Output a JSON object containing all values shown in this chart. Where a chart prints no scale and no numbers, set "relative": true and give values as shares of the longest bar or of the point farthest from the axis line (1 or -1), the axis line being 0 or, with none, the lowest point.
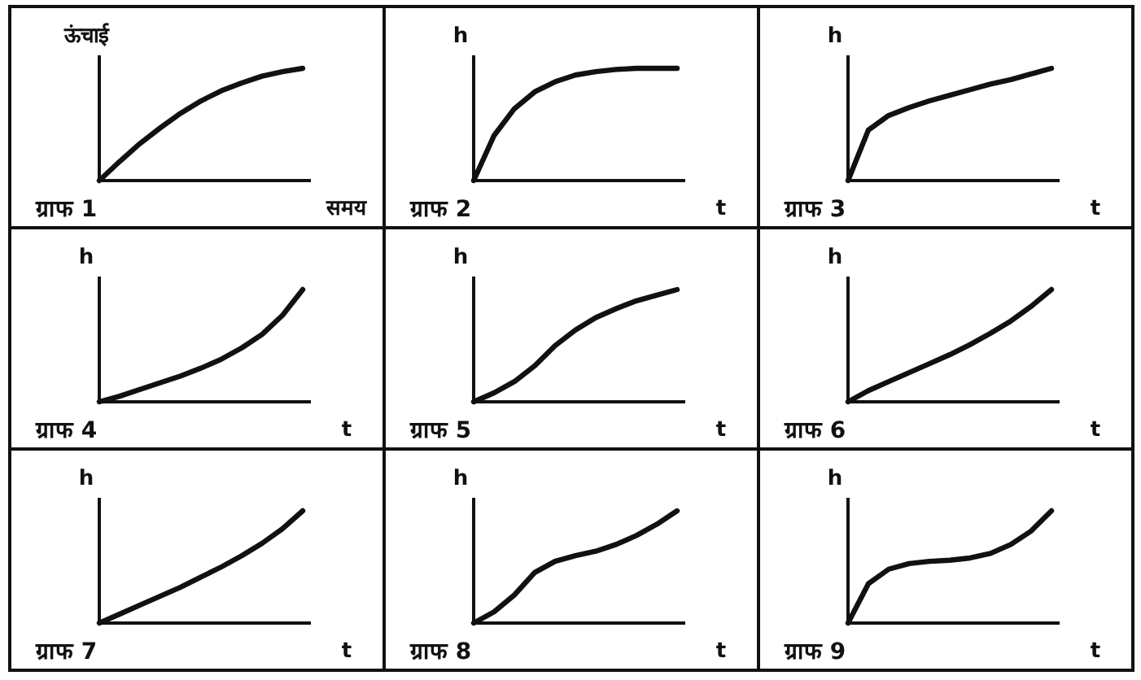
{
  "chart_data": [
    {
      "type": "line",
      "relative": true,
      "title": "ग्राफ 1",
      "xlabel": "समय",
      "ylabel": "ऊंचाई",
      "categories": [
        null,
        null,
        null,
        null,
        null,
        null,
        null,
        null,
        null,
        null,
        null
      ],
      "series": [
        {
          "color": "#111111",
          "values": [
            0,
            0.17,
            0.33,
            0.47,
            0.6,
            0.71,
            0.8,
            0.87,
            0.93,
            0.97,
            1
          ]
        }
      ]
    },
    {
      "type": "line",
      "relative": true,
      "title": "ग्राफ 2",
      "xlabel": "t",
      "ylabel": "h",
      "categories": [
        null,
        null,
        null,
        null,
        null,
        null,
        null,
        null,
        null,
        null,
        null
      ],
      "series": [
        {
          "color": "#111111",
          "values": [
            0,
            0.4,
            0.64,
            0.79,
            0.88,
            0.94,
            0.97,
            0.99,
            1,
            1,
            1
          ]
        }
      ]
    },
    {
      "type": "line",
      "relative": true,
      "title": "ग्राफ 3",
      "xlabel": "t",
      "ylabel": "h",
      "categories": [
        null,
        null,
        null,
        null,
        null,
        null,
        null,
        null,
        null,
        null,
        null
      ],
      "series": [
        {
          "color": "#111111",
          "values": [
            0,
            0.45,
            0.58,
            0.65,
            0.71,
            0.76,
            0.81,
            0.86,
            0.9,
            0.95,
            1
          ]
        }
      ]
    },
    {
      "type": "line",
      "relative": true,
      "title": "ग्राफ 4",
      "xlabel": "t",
      "ylabel": "h",
      "categories": [
        null,
        null,
        null,
        null,
        null,
        null,
        null,
        null,
        null,
        null,
        null
      ],
      "series": [
        {
          "color": "#111111",
          "values": [
            0,
            0.05,
            0.11,
            0.17,
            0.23,
            0.3,
            0.38,
            0.48,
            0.6,
            0.77,
            1
          ]
        }
      ]
    },
    {
      "type": "line",
      "relative": true,
      "title": "ग्राफ 5",
      "xlabel": "t",
      "ylabel": "h",
      "categories": [
        null,
        null,
        null,
        null,
        null,
        null,
        null,
        null,
        null,
        null,
        null
      ],
      "series": [
        {
          "color": "#111111",
          "values": [
            0,
            0.08,
            0.18,
            0.32,
            0.5,
            0.64,
            0.75,
            0.83,
            0.9,
            0.95,
            1
          ]
        }
      ]
    },
    {
      "type": "line",
      "relative": true,
      "title": "ग्राफ 6",
      "xlabel": "t",
      "ylabel": "h",
      "categories": [
        null,
        null,
        null,
        null,
        null,
        null,
        null,
        null,
        null,
        null,
        null
      ],
      "series": [
        {
          "color": "#111111",
          "values": [
            0,
            0.1,
            0.18,
            0.26,
            0.34,
            0.42,
            0.51,
            0.61,
            0.72,
            0.85,
            1
          ]
        }
      ]
    },
    {
      "type": "line",
      "relative": true,
      "title": "ग्राफ 7",
      "xlabel": "t",
      "ylabel": "h",
      "categories": [
        null,
        null,
        null,
        null,
        null,
        null,
        null,
        null,
        null,
        null,
        null
      ],
      "series": [
        {
          "color": "#111111",
          "values": [
            0,
            0.08,
            0.16,
            0.24,
            0.32,
            0.41,
            0.5,
            0.6,
            0.71,
            0.84,
            1
          ]
        }
      ]
    },
    {
      "type": "line",
      "relative": true,
      "title": "ग्राफ 8",
      "xlabel": "t",
      "ylabel": "h",
      "categories": [
        null,
        null,
        null,
        null,
        null,
        null,
        null,
        null,
        null,
        null,
        null
      ],
      "series": [
        {
          "color": "#111111",
          "values": [
            0,
            0.1,
            0.25,
            0.45,
            0.55,
            0.6,
            0.64,
            0.7,
            0.78,
            0.88,
            1
          ]
        }
      ]
    },
    {
      "type": "line",
      "relative": true,
      "title": "ग्राफ 9",
      "xlabel": "t",
      "ylabel": "h",
      "categories": [
        null,
        null,
        null,
        null,
        null,
        null,
        null,
        null,
        null,
        null,
        null
      ],
      "series": [
        {
          "color": "#111111",
          "values": [
            0,
            0.35,
            0.48,
            0.53,
            0.55,
            0.56,
            0.58,
            0.62,
            0.7,
            0.82,
            1
          ]
        }
      ]
    }
  ]
}
